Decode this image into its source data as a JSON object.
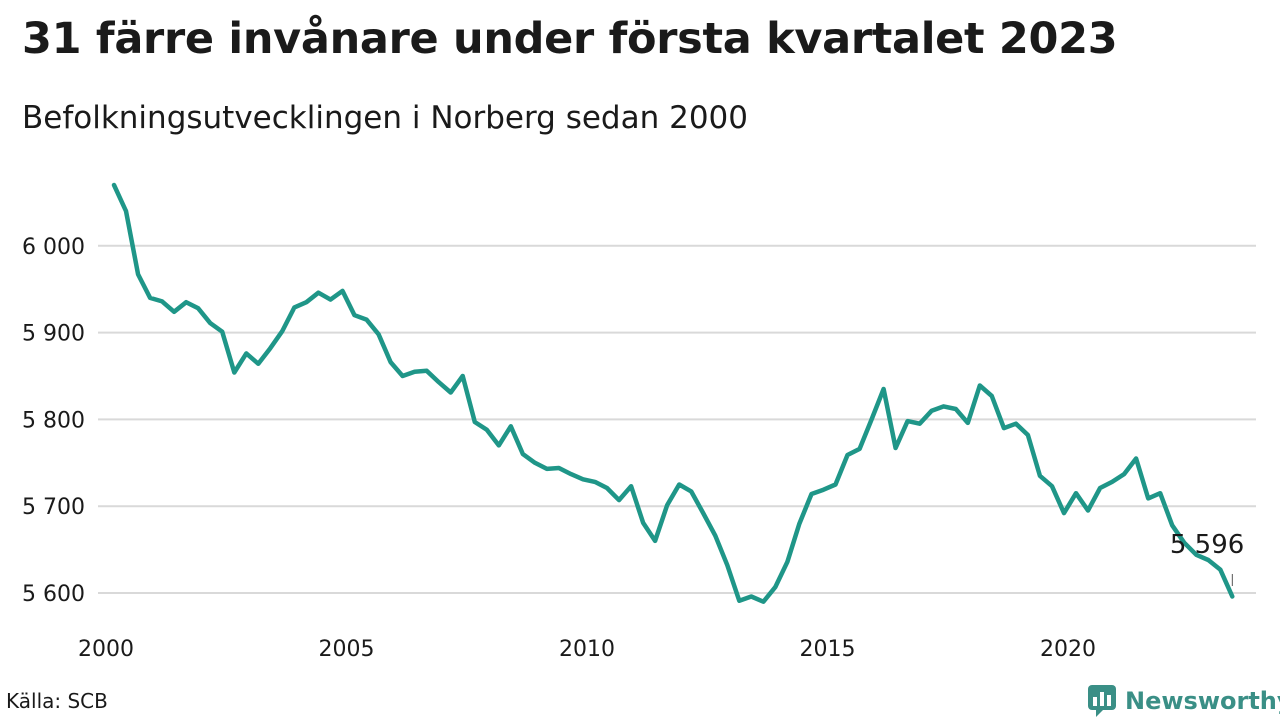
{
  "title": "31 färre invånare under första kvartalet 2023",
  "subtitle": "Befolkningsutvecklingen i Norberg sedan 2000",
  "source": "Källa: SCB",
  "brand": "Newsworthy",
  "colors": {
    "line": "#1f9688",
    "grid": "#d9d9d9",
    "brand": "#3a8f86"
  },
  "chart_data": {
    "type": "line",
    "title": "31 färre invånare under första kvartalet 2023",
    "subtitle": "Befolkningsutvecklingen i Norberg sedan 2000",
    "xlabel": "",
    "ylabel": "",
    "x_ticks": [
      2000,
      2005,
      2010,
      2015,
      2020
    ],
    "y_ticks": [
      5600,
      5700,
      5800,
      5900,
      6000
    ],
    "y_tick_labels": [
      "5 600",
      "5 700",
      "5 800",
      "5 900",
      "6 000"
    ],
    "xlim": [
      2000,
      2023.25
    ],
    "ylim": [
      5585,
      6080
    ],
    "grid": "horizontal",
    "legend": "none",
    "end_label": "5 596",
    "series": [
      {
        "x": [
          2000.0,
          2000.25,
          2000.5,
          2000.75,
          2001.0,
          2001.25,
          2001.5,
          2001.75,
          2002.0,
          2002.25,
          2002.5,
          2002.75,
          2003.0,
          2003.25,
          2003.5,
          2003.75,
          2004.0,
          2004.25,
          2004.5,
          2004.75,
          2005.0,
          2005.25,
          2005.5,
          2005.75,
          2006.0,
          2006.25,
          2006.5,
          2006.75,
          2007.0,
          2007.25,
          2007.5,
          2007.75,
          2008.0,
          2008.25,
          2008.5,
          2008.75,
          2009.0,
          2009.25,
          2009.5,
          2009.75,
          2010.0,
          2010.25,
          2010.5,
          2010.75,
          2011.0,
          2011.25,
          2011.5,
          2011.75,
          2012.0,
          2012.25,
          2012.5,
          2012.75,
          2013.0,
          2013.25,
          2013.5,
          2013.75,
          2014.0,
          2014.25,
          2014.5,
          2014.75,
          2015.0,
          2015.25,
          2015.5,
          2015.75,
          2016.0,
          2016.25,
          2016.5,
          2016.75,
          2017.0,
          2017.25,
          2017.5,
          2017.75,
          2018.0,
          2018.25,
          2018.5,
          2018.75,
          2019.0,
          2019.25,
          2019.5,
          2019.75,
          2020.0,
          2020.25,
          2020.5,
          2020.75,
          2021.0,
          2021.25,
          2021.5,
          2021.75,
          2022.0,
          2022.25,
          2022.5,
          2022.75,
          2023.0,
          2023.25
        ],
        "y": [
          6070,
          6040,
          5967,
          5940,
          5936,
          5924,
          5935,
          5928,
          5911,
          5901,
          5854,
          5876,
          5864,
          5882,
          5902,
          5929,
          5935,
          5946,
          5938,
          5948,
          5920,
          5915,
          5898,
          5866,
          5850,
          5855,
          5856,
          5843,
          5831,
          5850,
          5797,
          5788,
          5770,
          5792,
          5760,
          5750,
          5743,
          5744,
          5737,
          5731,
          5728,
          5721,
          5707,
          5723,
          5681,
          5660,
          5701,
          5725,
          5717,
          5692,
          5666,
          5632,
          5591,
          5596,
          5590,
          5607,
          5636,
          5680,
          5714,
          5719,
          5725,
          5759,
          5766,
          5800,
          5835,
          5767,
          5798,
          5795,
          5810,
          5815,
          5812,
          5796,
          5839,
          5827,
          5790,
          5795,
          5782,
          5735,
          5723,
          5692,
          5715,
          5695,
          5721,
          5728,
          5737,
          5755,
          5709,
          5715,
          5678,
          5658,
          5644,
          5638,
          5627,
          5596
        ]
      }
    ]
  }
}
